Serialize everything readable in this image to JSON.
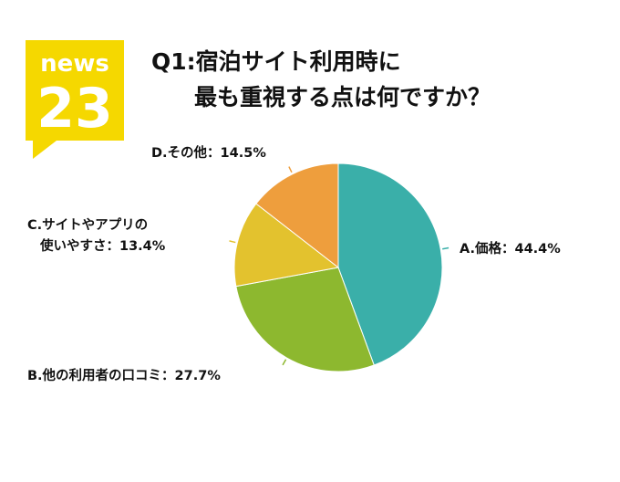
{
  "logo": {
    "line1": "news",
    "line2": "23",
    "color": "#F5D800"
  },
  "title": {
    "line1": "Q1:宿泊サイト利用時に",
    "line2": "最も重視する点は何ですか？"
  },
  "chart_data": {
    "type": "pie",
    "slices": [
      {
        "label": "A.価格：44.4%",
        "category": "A.価格",
        "value": 44.4,
        "color": "#3AAFA9"
      },
      {
        "label": "B.他の利用者の口コミ：27.7%",
        "category": "B.他の利用者の口コミ",
        "value": 27.7,
        "color": "#8DB82F"
      },
      {
        "label": "C.サイトやアプリの使いやすさ：13.4%",
        "label_lines": [
          "C.サイトやアプリの",
          "使いやすさ：13.4%"
        ],
        "category": "C.サイトやアプリの使いやすさ",
        "value": 13.4,
        "color": "#E3C22E"
      },
      {
        "label": "D.その他：14.5%",
        "category": "D.その他",
        "value": 14.5,
        "color": "#EE9E3D"
      }
    ],
    "start_angle_deg": 0,
    "direction": "clockwise"
  }
}
